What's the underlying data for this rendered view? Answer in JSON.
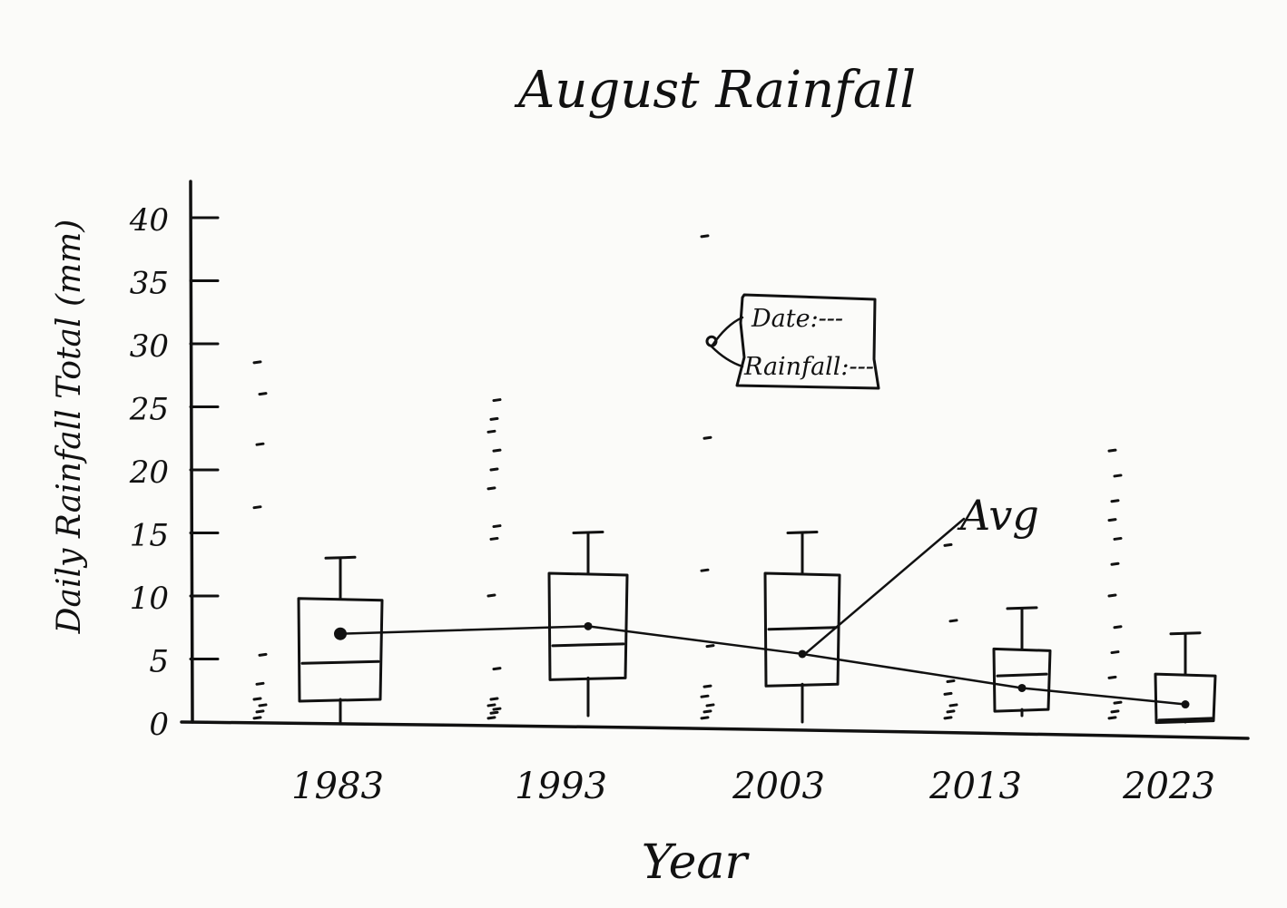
{
  "chart_data": {
    "type": "box",
    "title": "August Rainfall",
    "xlabel": "Year",
    "ylabel": "Daily Rainfall Total (mm)",
    "ylim": [
      0,
      40
    ],
    "yticks": [
      {
        "value": 0,
        "label": "0"
      },
      {
        "value": 5,
        "label": "5"
      },
      {
        "value": 10,
        "label": "10"
      },
      {
        "value": 15,
        "label": "15"
      },
      {
        "value": 20,
        "label": "20"
      },
      {
        "value": 25,
        "label": "25"
      },
      {
        "value": 30,
        "label": "30"
      },
      {
        "value": 35,
        "label": "35"
      },
      {
        "value": 40,
        "label": "40"
      }
    ],
    "categories": [
      "1983",
      "1993",
      "2003",
      "2013",
      "2023"
    ],
    "boxes": [
      {
        "year": "1983",
        "min": 0,
        "q1": 1.8,
        "median": 4.8,
        "q3": 9.8,
        "max": 13,
        "mean": 7.0
      },
      {
        "year": "1993",
        "min": 0.5,
        "q1": 3.5,
        "median": 6.2,
        "q3": 11.8,
        "max": 15,
        "mean": 7.6
      },
      {
        "year": "2003",
        "min": 0,
        "q1": 3.0,
        "median": 7.5,
        "q3": 11.8,
        "max": 15,
        "mean": 5.4
      },
      {
        "year": "2013",
        "min": 0.5,
        "q1": 1.0,
        "median": 3.8,
        "q3": 5.8,
        "max": 9,
        "mean": 2.7
      },
      {
        "year": "2023",
        "min": 0,
        "q1": 0.1,
        "median": 0.3,
        "q3": 3.8,
        "max": 7,
        "mean": 1.4
      }
    ],
    "points": [
      {
        "year": "1983",
        "values": [
          0.3,
          0.8,
          1.3,
          1.8,
          3.0,
          5.3,
          17.0,
          22.0,
          26.0,
          28.5
        ]
      },
      {
        "year": "1993",
        "values": [
          0.3,
          0.7,
          1.0,
          1.3,
          1.8,
          4.2,
          10.0,
          14.5,
          15.5,
          18.5,
          20.0,
          21.5,
          23.0,
          24.0,
          25.5
        ]
      },
      {
        "year": "2003",
        "values": [
          0.3,
          0.8,
          1.3,
          2.0,
          2.8,
          6.0,
          12.0,
          22.5,
          30.2,
          38.5
        ]
      },
      {
        "year": "2013",
        "values": [
          0.3,
          0.8,
          1.3,
          2.2,
          3.2,
          8.0,
          14.0
        ]
      },
      {
        "year": "2023",
        "values": [
          0.3,
          0.8,
          1.5,
          3.5,
          5.5,
          7.5,
          10.0,
          12.5,
          14.5,
          16.0,
          17.5,
          19.5,
          21.5
        ]
      }
    ],
    "legend": "none",
    "grid": false,
    "annotations": {
      "avg_label": "Avg",
      "tooltip_date": "Date:---",
      "tooltip_rainfall": "Rainfall:---"
    }
  }
}
